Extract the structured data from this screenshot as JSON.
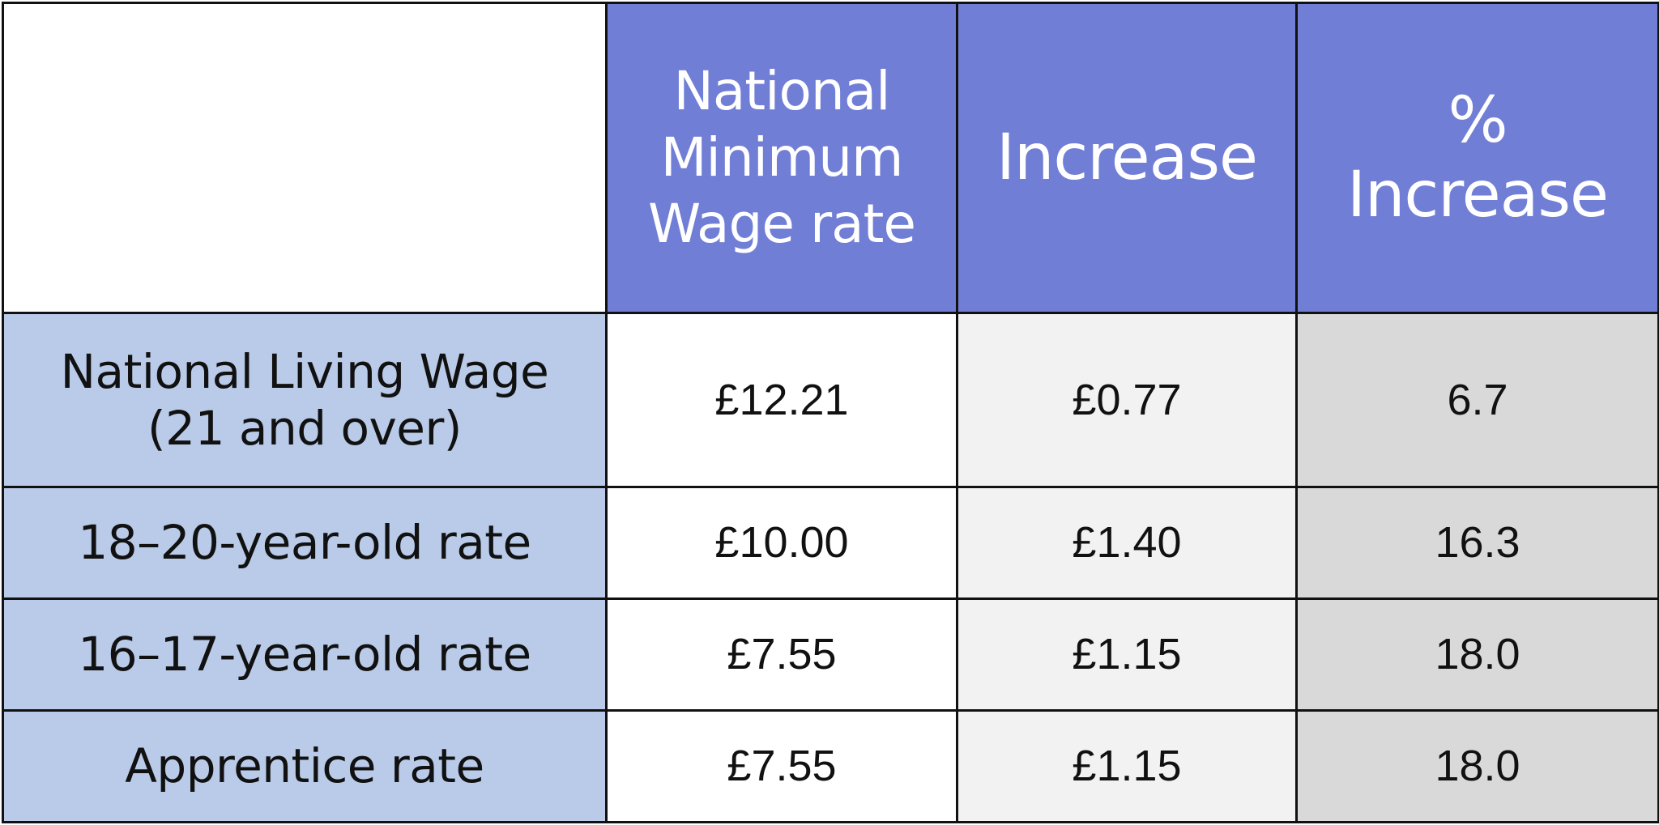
{
  "table": {
    "headers": {
      "rate": "National Minimum Wage rate",
      "increase": "Increase",
      "pct_increase": "% Increase"
    },
    "rows": [
      {
        "label": "National Living Wage (21 and over)",
        "rate": "£12.21",
        "increase": "£0.77",
        "pct": "6.7"
      },
      {
        "label": "18–20-year-old rate",
        "rate": "£10.00",
        "increase": "£1.40",
        "pct": "16.3"
      },
      {
        "label": "16–17-year-old rate",
        "rate": "£7.55",
        "increase": "£1.15",
        "pct": "18.0"
      },
      {
        "label": "Apprentice rate",
        "rate": "£7.55",
        "increase": "£1.15",
        "pct": "18.0"
      }
    ]
  },
  "colors": {
    "header_bg": "#717ed6",
    "label_bg": "#b9cbe8",
    "rate_bg": "#ffffff",
    "increase_bg": "#f2f2f2",
    "pct_bg": "#d9d9d9"
  }
}
